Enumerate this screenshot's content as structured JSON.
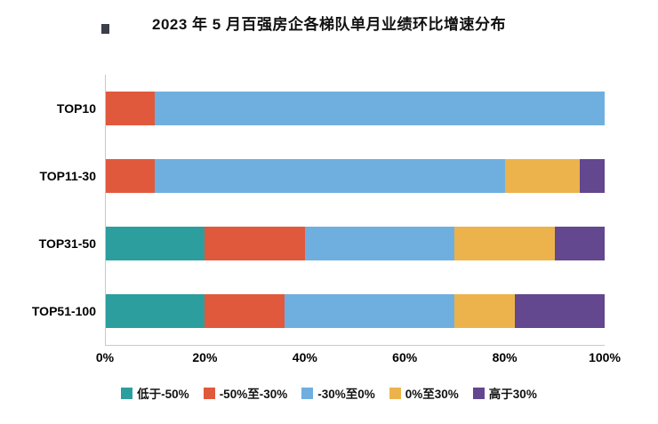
{
  "title": "2023 年 5 月百强房企各梯队单月业绩环比增速分布",
  "chart_data": {
    "type": "bar",
    "orientation": "horizontal",
    "stacked": true,
    "unit": "%",
    "categories": [
      "TOP10",
      "TOP11-30",
      "TOP31-50",
      "TOP51-100"
    ],
    "series": [
      {
        "name": "低于-50%",
        "color": "#2d9e9e",
        "values": [
          0,
          0,
          20,
          20
        ]
      },
      {
        "name": "-50%至-30%",
        "color": "#e0593c",
        "values": [
          10,
          10,
          20,
          16
        ]
      },
      {
        "name": "-30%至0%",
        "color": "#6fafe0",
        "values": [
          90,
          70,
          30,
          34
        ]
      },
      {
        "name": "0%至30%",
        "color": "#ecb34c",
        "values": [
          0,
          15,
          20,
          12
        ]
      },
      {
        "name": "高于30%",
        "color": "#63478f",
        "values": [
          0,
          5,
          10,
          18
        ]
      }
    ],
    "x_ticks": [
      "0%",
      "20%",
      "40%",
      "60%",
      "80%",
      "100%"
    ],
    "xlim": [
      0,
      100
    ],
    "grid": false,
    "legend_position": "bottom"
  }
}
